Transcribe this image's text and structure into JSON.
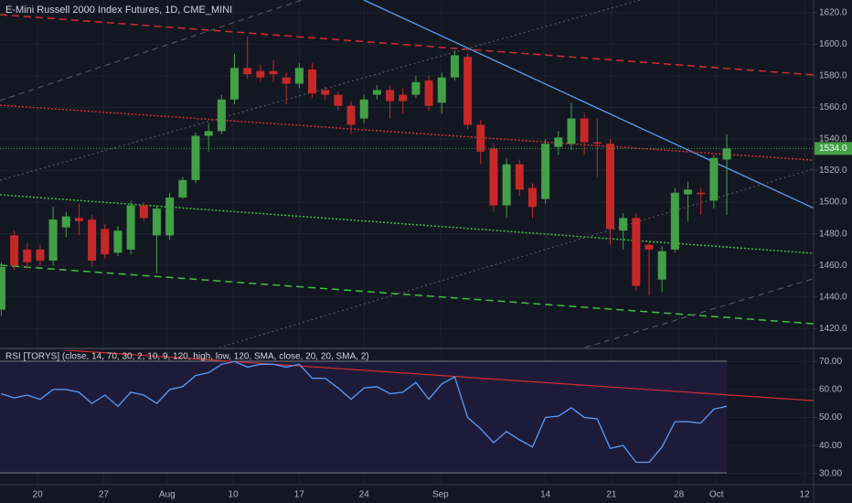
{
  "chart_data": [
    {
      "type": "candlestick",
      "title": "E-Mini Russell 2000 Index Futures, 1D, CME_MINI",
      "up_color": "#43a047",
      "down_color": "#c62828",
      "open": [
        1432,
        1479,
        1470,
        1470,
        1463,
        1484,
        1490,
        1489,
        1483,
        1468,
        1470,
        1498,
        1479,
        1479,
        1503,
        1514,
        1542,
        1545,
        1565,
        1585,
        1583,
        1583,
        1579,
        1575,
        1584,
        1571,
        1568,
        1561,
        1553,
        1568,
        1571,
        1568,
        1568,
        1577,
        1563,
        1579,
        1592,
        1549,
        1534,
        1498,
        1524,
        1509,
        1502,
        1535,
        1537,
        1553,
        1538,
        1537,
        1482,
        1490,
        1473,
        1451,
        1470,
        1505,
        1506,
        1501,
        1527
      ],
      "high": [
        1462,
        1482,
        1474,
        1473,
        1497,
        1494,
        1499,
        1492,
        1486,
        1485,
        1501,
        1500,
        1498,
        1506,
        1516,
        1544,
        1550,
        1568,
        1594,
        1605,
        1587,
        1590,
        1582,
        1588,
        1588,
        1573,
        1570,
        1564,
        1568,
        1574,
        1574,
        1572,
        1580,
        1580,
        1582,
        1596,
        1594,
        1552,
        1537,
        1528,
        1527,
        1512,
        1540,
        1545,
        1563,
        1556,
        1553,
        1540,
        1493,
        1493,
        1475,
        1472,
        1509,
        1513,
        1509,
        1530,
        1543
      ],
      "low": [
        1428,
        1457,
        1458,
        1460,
        1460,
        1478,
        1479,
        1459,
        1464,
        1466,
        1467,
        1488,
        1455,
        1476,
        1502,
        1512,
        1532,
        1543,
        1562,
        1578,
        1576,
        1576,
        1562,
        1572,
        1566,
        1565,
        1558,
        1543,
        1550,
        1565,
        1553,
        1556,
        1566,
        1558,
        1556,
        1577,
        1546,
        1524,
        1494,
        1490,
        1504,
        1490,
        1499,
        1530,
        1533,
        1530,
        1516,
        1473,
        1470,
        1444,
        1441,
        1443,
        1468,
        1488,
        1492,
        1496,
        1492
      ],
      "close": [
        1459,
        1460,
        1462,
        1463,
        1489,
        1491,
        1488,
        1463,
        1467,
        1482,
        1498,
        1490,
        1496,
        1503,
        1514,
        1542,
        1545,
        1565,
        1585,
        1581,
        1579,
        1581,
        1575,
        1585,
        1569,
        1568,
        1561,
        1549,
        1565,
        1571,
        1564,
        1564,
        1576,
        1561,
        1579,
        1593,
        1549,
        1532,
        1498,
        1524,
        1508,
        1497,
        1537,
        1541,
        1553,
        1538,
        1537,
        1483,
        1490,
        1447,
        1470,
        1469,
        1506,
        1508,
        1505,
        1528,
        1534
      ],
      "last_price": {
        "value": 1534,
        "label": "1534.0"
      },
      "xlim": [
        -0.1,
        62.7
      ],
      "ylim": [
        1408,
        1628
      ],
      "yticks": [
        {
          "value": 1420,
          "label": "1420.0"
        },
        {
          "value": 1440,
          "label": "1440.0"
        },
        {
          "value": 1460,
          "label": "1460.0"
        },
        {
          "value": 1480,
          "label": "1480.0"
        },
        {
          "value": 1500,
          "label": "1500.0"
        },
        {
          "value": 1520,
          "label": "1520.0"
        },
        {
          "value": 1540,
          "label": "1540.0"
        },
        {
          "value": 1560,
          "label": "1560.0"
        },
        {
          "value": 1580,
          "label": "1580.0"
        },
        {
          "value": 1600,
          "label": "1600.0"
        },
        {
          "value": 1620,
          "label": "1620.0"
        }
      ],
      "grid": true
    },
    {
      "type": "line",
      "title": "RSI [TORYS] (close, 14, 70, 30, 2, 10, 9, 120, high, low, 120, SMA, close, 20, 20, SMA, 2)",
      "color": "#5b9cf6",
      "values": [
        58.5,
        57,
        58,
        56.5,
        60,
        60,
        59,
        55,
        58,
        54,
        59,
        58,
        55,
        60,
        61,
        65,
        66,
        69,
        70,
        68,
        69,
        69,
        68,
        69,
        64,
        64,
        60.5,
        56.5,
        60.5,
        61,
        58.5,
        59,
        62.5,
        56.5,
        62,
        64.5,
        50,
        46,
        41,
        45,
        42,
        39.5,
        50,
        50.5,
        53.5,
        50,
        49.5,
        39,
        40,
        34,
        34,
        39.5,
        48.5,
        48.5,
        48,
        53,
        54
      ],
      "xlim": [
        -0.1,
        62.7
      ],
      "ylim": [
        26,
        74
      ],
      "yticks": [
        {
          "value": 30,
          "label": "30.00"
        },
        {
          "value": 40,
          "label": "40.00"
        },
        {
          "value": 50,
          "label": "50.00"
        },
        {
          "value": 60,
          "label": "60.00"
        },
        {
          "value": 70,
          "label": "70.00"
        }
      ],
      "xticks": [
        {
          "value": 2.8,
          "label": "20"
        },
        {
          "value": 7.9,
          "label": "27"
        },
        {
          "value": 12.8,
          "label": "Aug"
        },
        {
          "value": 17.9,
          "label": "10"
        },
        {
          "value": 23,
          "label": "17"
        },
        {
          "value": 28,
          "label": "24"
        },
        {
          "value": 33.9,
          "label": "Sep"
        },
        {
          "value": 42,
          "label": "14"
        },
        {
          "value": 47.1,
          "label": "21"
        },
        {
          "value": 52.3,
          "label": "28"
        },
        {
          "value": 55.2,
          "label": "Oct"
        },
        {
          "value": 62,
          "label": "12"
        }
      ],
      "grid": true
    }
  ]
}
